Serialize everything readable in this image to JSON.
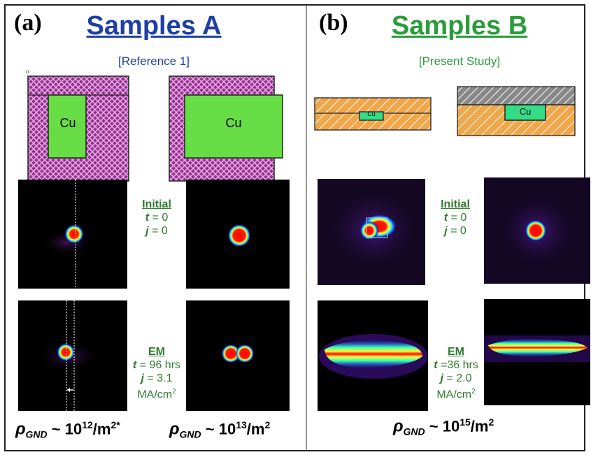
{
  "panels": {
    "a": {
      "label": "(a)",
      "title": "Samples A",
      "subtitle": "[Reference 1]",
      "schematic_label_left": "Cu",
      "schematic_label_right": "Cu",
      "initial": {
        "heading": "Initial",
        "t_var": "t",
        "t_val": " = 0",
        "j_var": "j",
        "j_val": " = 0"
      },
      "em": {
        "heading": "EM",
        "t_var": "t",
        "t_val": " = 96 hrs",
        "j_var": "j",
        "j_val": " = 3.1",
        "unit_base": "MA/cm",
        "unit_exp": "2"
      },
      "rho_left": {
        "symbol": "ρ",
        "sub": "GND",
        "text": " ~ 10",
        "exp": "12",
        "unit": "/m",
        "unit_exp": "2*"
      },
      "rho_right": {
        "symbol": "ρ",
        "sub": "GND",
        "text": " ~ 10",
        "exp": "13",
        "unit": "/m",
        "unit_exp": "2"
      }
    },
    "b": {
      "label": "(b)",
      "title": "Samples B",
      "subtitle": "[Present Study]",
      "schematic_label_left": "Cu",
      "schematic_label_right": "Cu",
      "initial": {
        "heading": "Initial",
        "t_var": "t",
        "t_val": " = 0",
        "j_var": "j",
        "j_val": " = 0"
      },
      "em": {
        "heading": "EM",
        "t_var": "t",
        "t_val": " =36 hrs",
        "j_var": "j",
        "j_val": " = 2.0",
        "unit_base": "MA/cm",
        "unit_exp": "2"
      },
      "rho": {
        "symbol": "ρ",
        "sub": "GND",
        "text": " ~ 10",
        "exp": "15",
        "unit": "/m",
        "unit_exp": "2"
      }
    }
  },
  "stray_mark": "o",
  "colors": {
    "title_a": "#1f3fa8",
    "title_b": "#2a9d3a",
    "note": "#2f7a2f",
    "hatch_purple": "#9b2f95",
    "hatch_orange": "#f1a64a",
    "copper_green": "#66dd44",
    "copper_teal": "#33dd88"
  }
}
